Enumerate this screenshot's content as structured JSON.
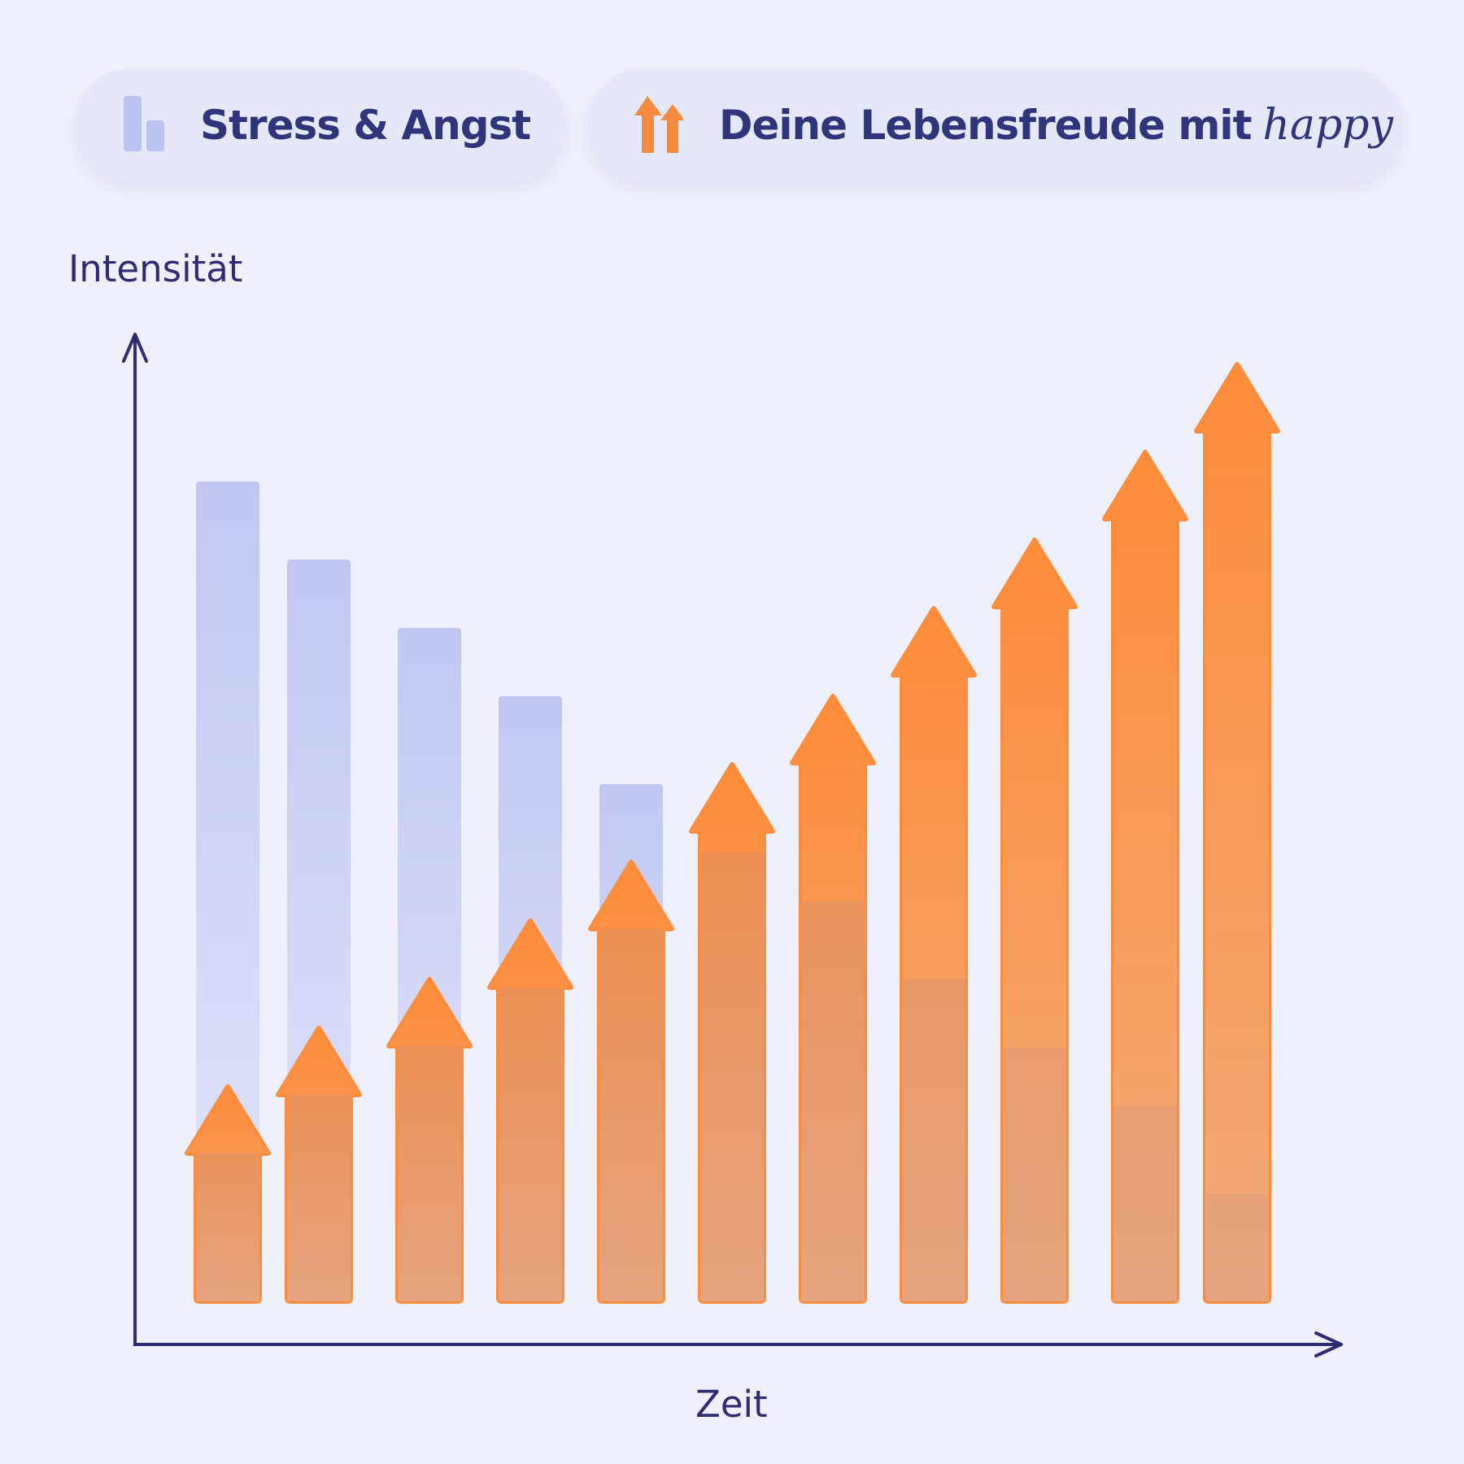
{
  "legend": {
    "stress_label": "Stress & Angst",
    "happy_label": "Deine Lebensfreude mit",
    "happy_brand": "happy",
    "stress_icon": "bar-chart-icon",
    "happy_icon": "double-up-arrow-icon"
  },
  "chart_data": {
    "type": "bar",
    "xlabel": "Zeit",
    "ylabel": "Intensität",
    "ylim": [
      0,
      100
    ],
    "categories": [
      "",
      "",
      "",
      "",
      "",
      "",
      "",
      "",
      "",
      "",
      ""
    ],
    "series": [
      {
        "name": "Stress & Angst",
        "values": [
          84,
          76,
          69,
          62,
          53,
          46,
          41,
          33,
          26,
          20,
          11
        ],
        "color": "#c2c8f1"
      },
      {
        "name": "Deine Lebensfreude mit happy",
        "values": [
          22,
          28,
          33,
          39,
          45,
          55,
          62,
          71,
          78,
          87,
          96
        ],
        "color": "#fd8d3c"
      }
    ],
    "grid": false,
    "legend_position": "top"
  }
}
